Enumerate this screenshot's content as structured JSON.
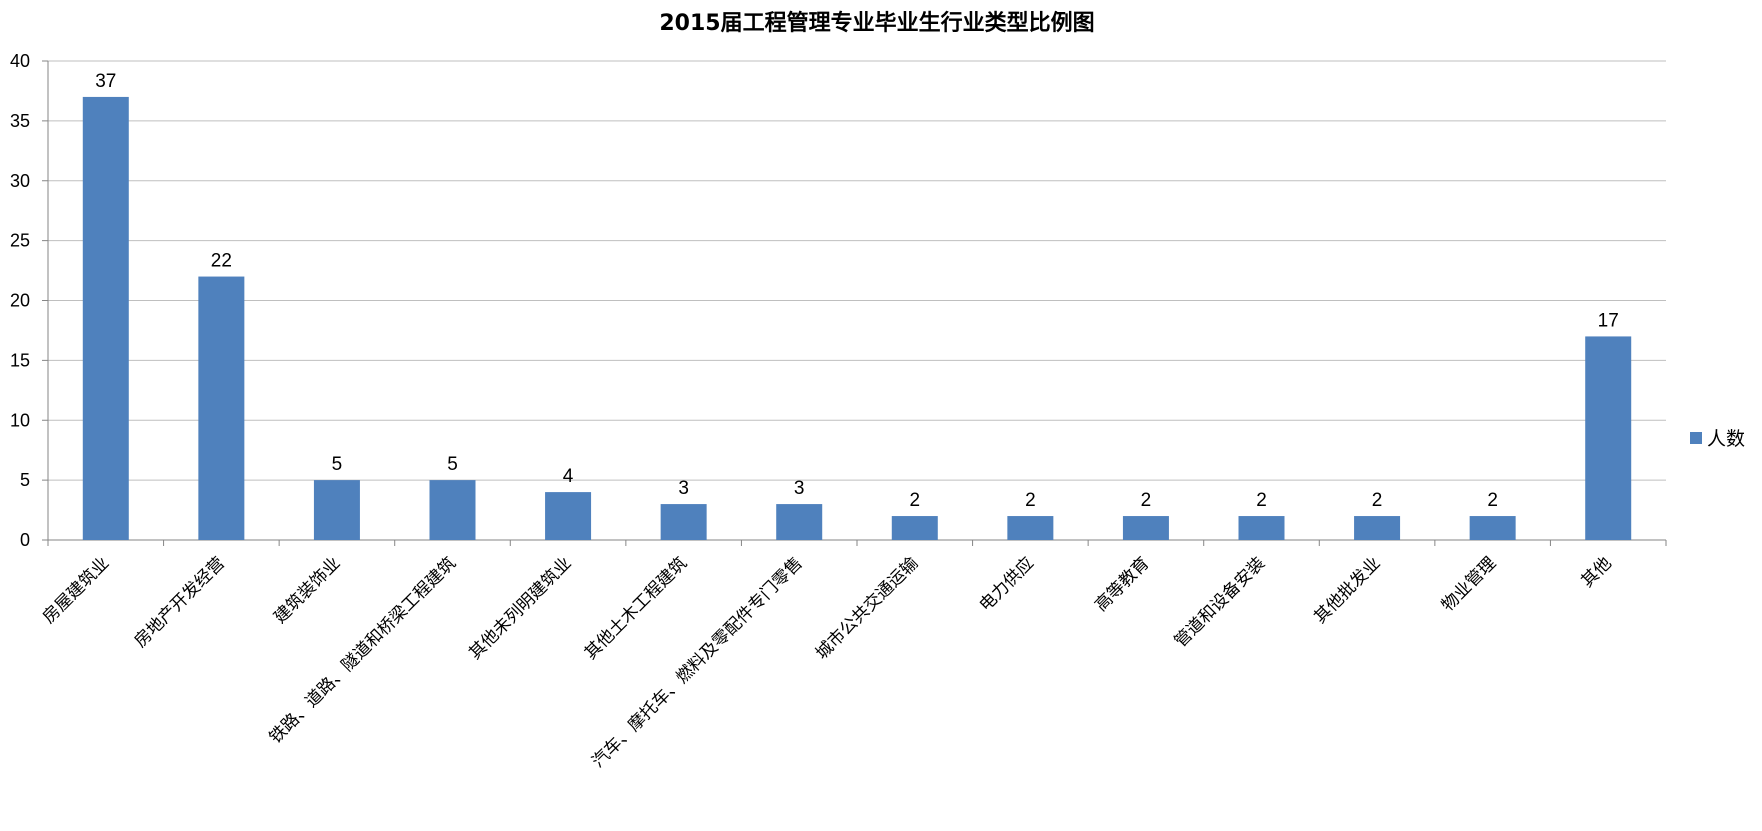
{
  "chart_data": {
    "type": "bar",
    "title": "2015届工程管理专业毕业生行业类型比例图",
    "categories": [
      "房屋建筑业",
      "房地产开发经营",
      "建筑装饰业",
      "铁路、道路、隧道和桥梁工程建筑",
      "其他未列明建筑业",
      "其他土木工程建筑",
      "汽车、摩托车、燃料及零配件专门零售",
      "城市公共交通运输",
      "电力供应",
      "高等教育",
      "管道和设备安装",
      "其他批发业",
      "物业管理",
      "其他"
    ],
    "series": [
      {
        "name": "人数",
        "values": [
          37,
          22,
          5,
          5,
          4,
          3,
          3,
          2,
          2,
          2,
          2,
          2,
          2,
          17
        ]
      }
    ],
    "xlabel": "",
    "ylabel": "",
    "ylim": [
      0,
      40
    ],
    "yticks": [
      0,
      5,
      10,
      15,
      20,
      25,
      30,
      35,
      40
    ],
    "grid": true,
    "legend_position": "right",
    "data_labels": true,
    "colors": {
      "bar": "#4F81BD",
      "grid": "#BFBFBF",
      "axis": "#868686"
    }
  }
}
